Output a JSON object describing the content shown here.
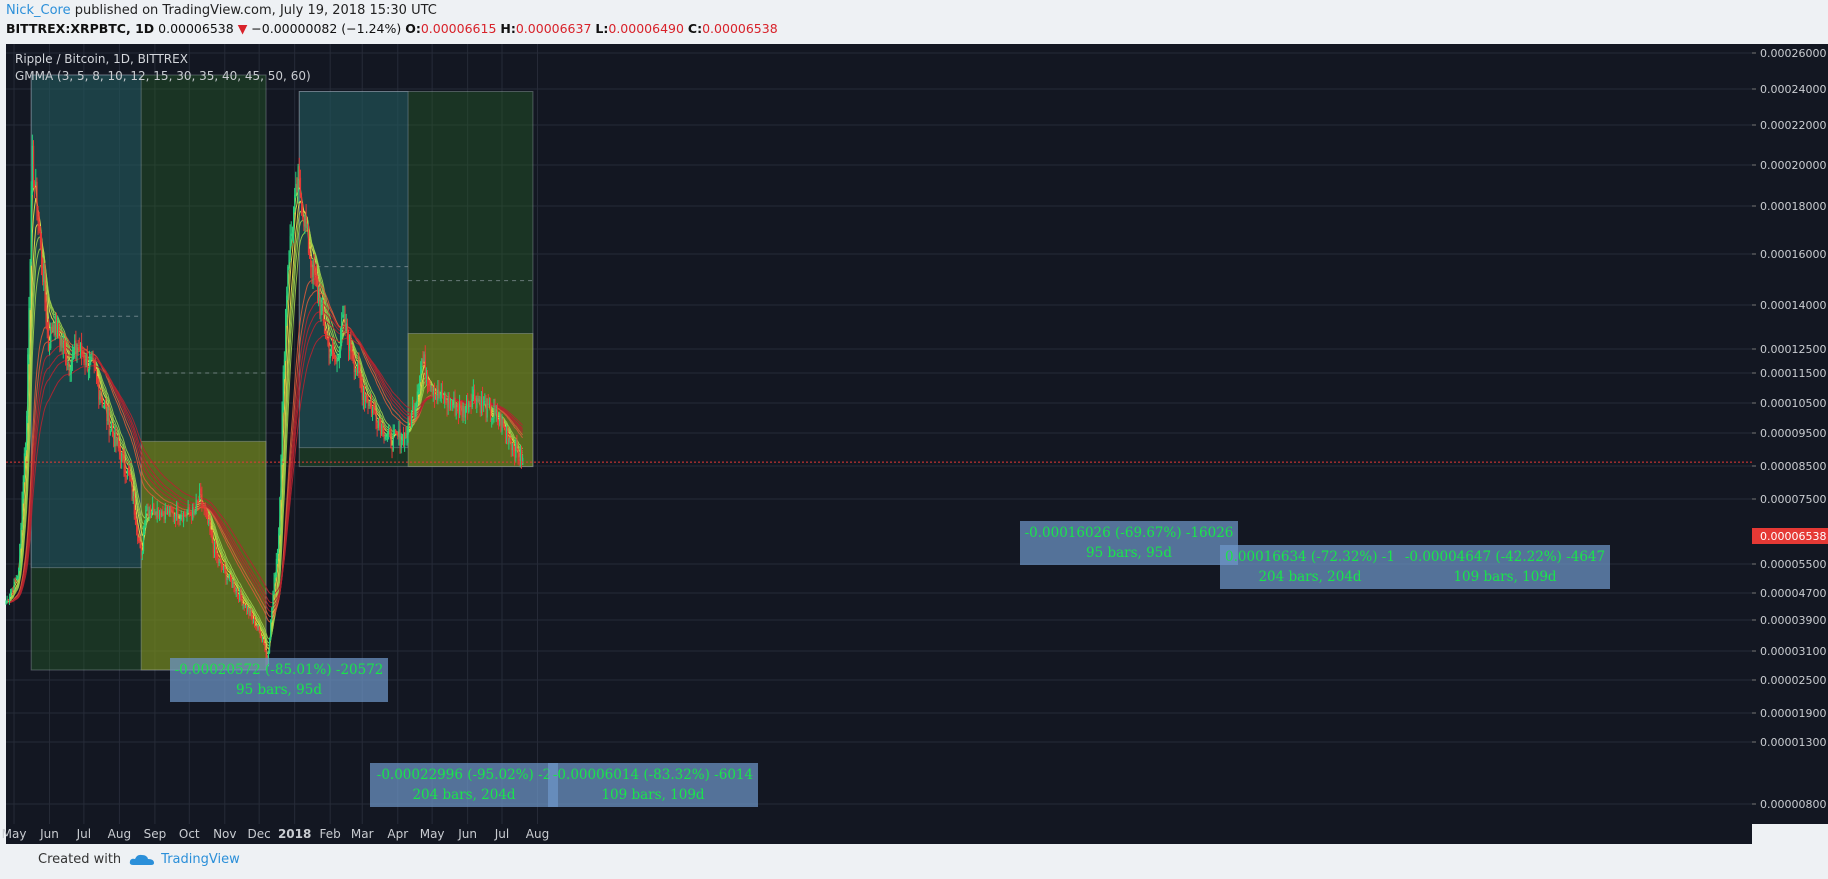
{
  "header": {
    "author": "Nick_Core",
    "published": " published on TradingView.com, July 19, 2018 15:30 UTC",
    "symbol": "BITTREX:XRPBTC, 1D",
    "last": "0.00006538",
    "change": "−0.00000082 (−1.24%)",
    "o_label": "O:",
    "o": "0.00006615",
    "h_label": "H:",
    "h": "0.00006637",
    "l_label": "L:",
    "l": "0.00006490",
    "c_label": "C:",
    "c": "0.00006538"
  },
  "legend": {
    "title": "Ripple / Bitcoin, 1D, BITTREX",
    "indicator": "GMMA (3, 5, 8, 10, 12, 15, 30, 35, 40, 45, 50, 60)"
  },
  "footer": {
    "created_with": "Created with",
    "brand": "TradingView"
  },
  "colors": {
    "background": "#131722",
    "up": "#26d07c",
    "down": "#e53935",
    "short_ma": "#e6d23a",
    "long_ma": "#c0282d",
    "grid": "#262b38",
    "price_line": "#e53935"
  },
  "chart_data": {
    "type": "candlestick",
    "x_ticks": [
      "May",
      "Jun",
      "Jul",
      "Aug",
      "Sep",
      "Oct",
      "Nov",
      "Dec",
      "2018",
      "Feb",
      "Mar",
      "Apr",
      "May",
      "Jun",
      "Jul",
      "Aug"
    ],
    "y_ticks": [
      "0.00026000",
      "0.00024000",
      "0.00022000",
      "0.00020000",
      "0.00018000",
      "0.00016000",
      "0.00014000",
      "0.00012500",
      "0.00011500",
      "0.00010500",
      "0.00009500",
      "0.00008500",
      "0.00007500",
      "0.00006538",
      "0.00005500",
      "0.00004700",
      "0.00003900",
      "0.00003100",
      "0.00002500",
      "0.00001900",
      "0.00001300",
      "0.00000800"
    ],
    "last_price": "0.00006538",
    "price_path": [
      [
        "2017-04-24",
        2.7e-05
      ],
      [
        "2017-05-05",
        3.5e-05
      ],
      [
        "2017-05-12",
        8e-05
      ],
      [
        "2017-05-17",
        0.00019
      ],
      [
        "2017-05-22",
        0.00016
      ],
      [
        "2017-05-31",
        0.000105
      ],
      [
        "2017-06-04",
        0.000115
      ],
      [
        "2017-06-18",
        9.8e-05
      ],
      [
        "2017-06-25",
        0.000105
      ],
      [
        "2017-07-10",
        9.5e-05
      ],
      [
        "2017-07-25",
        7.5e-05
      ],
      [
        "2017-08-10",
        6e-05
      ],
      [
        "2017-08-20",
        3.8e-05
      ],
      [
        "2017-08-24",
        5.2e-05
      ],
      [
        "2017-09-15",
        5e-05
      ],
      [
        "2017-10-05",
        5e-05
      ],
      [
        "2017-10-10",
        5.5e-05
      ],
      [
        "2017-10-25",
        3.8e-05
      ],
      [
        "2017-11-15",
        2.8e-05
      ],
      [
        "2017-12-05",
        1.8e-05
      ],
      [
        "2017-12-08",
        1.3e-05
      ],
      [
        "2017-12-18",
        4.5e-05
      ],
      [
        "2017-12-26",
        0.00014
      ],
      [
        "2018-01-04",
        0.00018
      ],
      [
        "2018-01-15",
        0.00014
      ],
      [
        "2018-01-30",
        0.000105
      ],
      [
        "2018-02-06",
        9.8e-05
      ],
      [
        "2018-02-12",
        0.000115
      ],
      [
        "2018-02-28",
        9e-05
      ],
      [
        "2018-03-25",
        7.2e-05
      ],
      [
        "2018-04-08",
        7.4e-05
      ],
      [
        "2018-04-16",
        8.5e-05
      ],
      [
        "2018-04-22",
        0.0001
      ],
      [
        "2018-05-05",
        8.7e-05
      ],
      [
        "2018-05-28",
        8.2e-05
      ],
      [
        "2018-06-05",
        8.8e-05
      ],
      [
        "2018-07-01",
        7.7e-05
      ],
      [
        "2018-07-19",
        6.54e-05
      ]
    ],
    "measurements": [
      {
        "text": "-0.00020572 (-85.01%) -20572",
        "bars": "95 bars, 95d",
        "from": "2017-05-16",
        "to": "2017-08-20",
        "high": 0.00024,
        "low": 3.6e-05
      },
      {
        "text": "-0.00022996 (-95.02%) -2",
        "bars": "204 bars, 204d",
        "from": "2017-05-16",
        "to": "2017-12-07",
        "high": 0.00024,
        "low": 1.2e-05
      },
      {
        "text": "-0.00006014 (-83.32%) -6014",
        "bars": "109 bars, 109d",
        "from": "2017-08-20",
        "to": "2017-12-07",
        "high": 7.2e-05,
        "low": 1.2e-05
      },
      {
        "text": "-0.00016026 (-69.67%) -16026",
        "bars": "95 bars, 95d",
        "from": "2018-01-05",
        "to": "2018-04-10",
        "high": 0.00023,
        "low": 7e-05
      },
      {
        "text": "0.00016634 (-72.32%) -1",
        "bars": "204 bars, 204d",
        "from": "2018-01-05",
        "to": "2018-07-28",
        "high": 0.00023,
        "low": 6.4e-05
      },
      {
        "text": "-0.00004647 (-42.22%) -4647",
        "bars": "109 bars, 109d",
        "from": "2018-04-10",
        "to": "2018-07-28",
        "high": 0.00011,
        "low": 6.4e-05
      }
    ]
  }
}
